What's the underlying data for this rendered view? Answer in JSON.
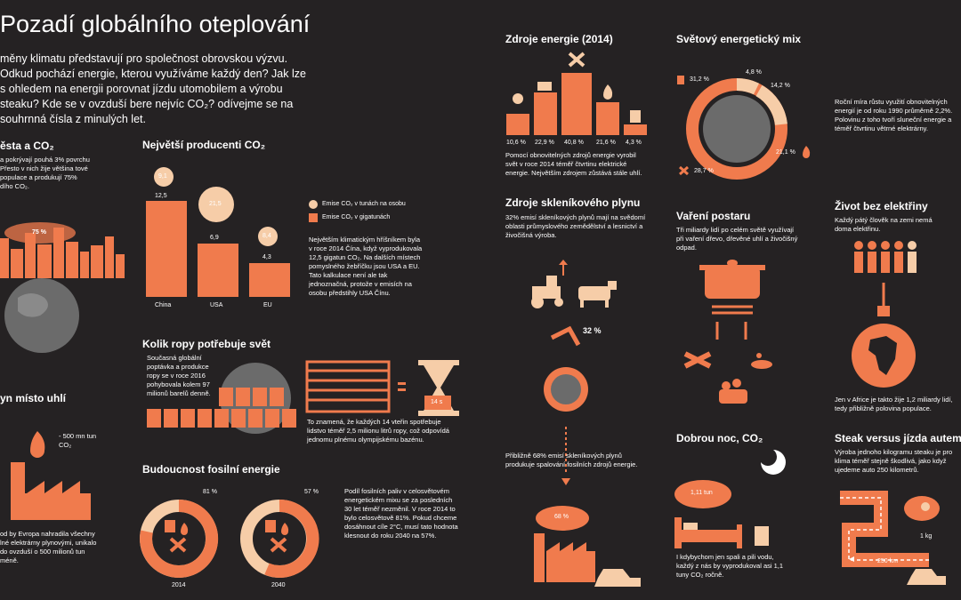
{
  "title": "Pozadí globálního oteplování",
  "intro": "měny klimatu představují pro společnost obrovskou výzvu. Odkud pochází energie, kterou využíváme každý den? Jak lze s ohledem na energii porovnat jízdu utomobilem a výrobu steaku? Kde se v ovzduší bere nejvíc CO₂? odívejme se na souhrnná čísla z minulých let.",
  "earth": {
    "heading": "ěsta a CO₂",
    "text": "a pokrývají pouhá 3% povrchu Přesto v nich žije většina tové populace a produkují 75% dího CO₂.",
    "percent": "75 %"
  },
  "coal": {
    "heading": "yn místo uhlí",
    "amount": "- 500 mn tun CO₂",
    "text": "od by Evropa nahradila všechny lné elektrárny plynovými, unikalo do ovzduší o 500 milionů tun méně."
  },
  "producers": {
    "heading": "Největší producenti CO₂",
    "legend_per_capita": "Emise CO₂ v tunách na osobu",
    "legend_total": "Emise CO₂ v gigatunách",
    "text": "Největším klimatickým hříšníkem byla v roce 2014 Čína, když vyprodukovala 12,5 gigatun CO₂. Na dalších místech pomyslného žebříčku jsou USA a EU. Tato kalkulace není ale tak jednoznačná, protože v emisích na osobu předstihly USA Čínu."
  },
  "chart_data": {
    "type": "bar",
    "categories": [
      "China",
      "USA",
      "EU"
    ],
    "series": [
      {
        "name": "Emise CO₂ v gigatunách",
        "values": [
          12.5,
          6.9,
          4.3
        ],
        "labels": [
          "12,5",
          "6,9",
          "4,3"
        ]
      },
      {
        "name": "Emise CO₂ v tunách na osobu",
        "values": [
          9.1,
          21.5,
          8.4
        ],
        "labels": [
          "9,1",
          "21,5",
          "8,4"
        ]
      }
    ]
  },
  "oil": {
    "heading": "Kolik ropy potřebuje svět",
    "text": "Současná globální poptávka a produkce ropy se v roce 2016 pohybovala kolem 97 milionů barelů denně.",
    "seconds": "14 s",
    "note": "To znamená, že každých 14 vteřin spotřebuje lidstvo téměř 2,5 milionu litrů ropy, což odpovídá jednomu plnému olympijskému bazénu."
  },
  "fossil": {
    "heading": "Budoucnost fosilní energie",
    "year1": "2014",
    "pct1": "81 %",
    "year2": "2040",
    "pct2": "57 %",
    "text": "Podíl fosilních paliv v celosvětovém energetickém mixu se za posledních 30 let téměř nezměnil. V roce 2014 to bylo celosvětově 81%. Pokud chceme dosáhnout cíle 2°C, musí tato hodnota klesnout do roku 2040 na 57%."
  },
  "sources": {
    "heading": "Zdroje energie (2014)",
    "values": [
      "10,6 %",
      "22,9 %",
      "40,8 %",
      "21,6 %",
      "4,3 %"
    ],
    "text": "Pomocí obnovitelných zdrojů energie vyrobil svět v roce 2014 téměř čtvrtinu elektrické energie. Největším zdrojem zůstává stále uhlí."
  },
  "greenhouse": {
    "heading": "Zdroje skleníkového plynu",
    "text": "32% emisí skleníkových plynů mají na svědomí oblasti průmyslového zemědělství a lesnictví a živočišná výroba.",
    "percent1": "32 %",
    "percent2": "68 %",
    "text2": "Přibližně 68% emisí skleníkových plynů produkuje spalování fosilních zdrojů energie."
  },
  "mix": {
    "heading": "Světový energetický mix",
    "values": [
      "31,2 %",
      "4,8 %",
      "14,2 %",
      "21,1 %",
      "28,7 %"
    ],
    "text": "Roční míra růstu využití obnovitelných energií je od roku 1990 průměrně 2,2%. Polovinu z toho tvoří sluneční energie a téměř čtvrtinu větrné elektrárny."
  },
  "cooking": {
    "heading": "Vaření postaru",
    "text": "Tři miliardy lidí po celém světě využívají při vaření dřevo, dřevěné uhlí a živočišný odpad."
  },
  "night": {
    "heading": "Dobrou noc, CO₂",
    "amount": "1,11 tun",
    "text": "I kdybychom jen spali a pili vodu, každý z nás by vyprodukoval asi 1,1 tuny CO₂ ročně."
  },
  "noelectricity": {
    "heading": "Život bez elektřiny",
    "text": "Každý pátý člověk na zemi nemá doma elektřinu.",
    "text2": "Jen v Africe je takto žije 1,2 miliardy lidí, tedy přibližně polovina populace."
  },
  "steak": {
    "heading": "Steak versus jízda autem",
    "text": "Výroba jednoho kilogramu steaku je pro klima téměř stejně škodlivá, jako když ujedeme auto 250 kilometrů.",
    "weight": "1 kg",
    "distance": "250 km"
  },
  "colors": {
    "orange": "#f07b4d",
    "cream": "#f6cda8",
    "background": "#252223",
    "globe": "#6b6b6b"
  }
}
